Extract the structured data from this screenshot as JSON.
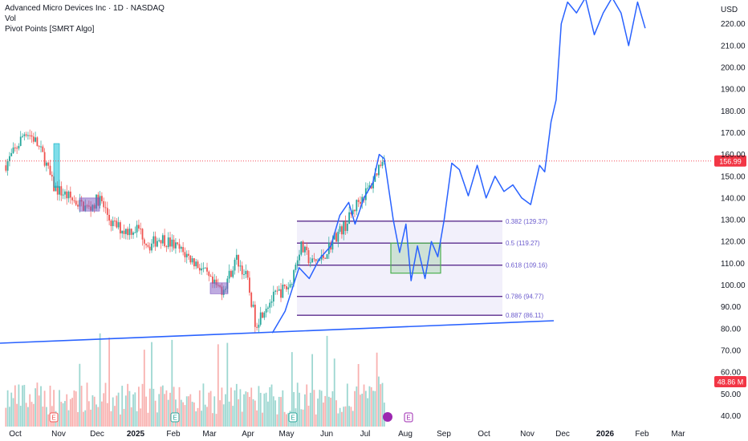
{
  "legend": {
    "title": "Advanced Micro Devices Inc · 1D · NASDAQ",
    "line2": "Vol",
    "line3": "Pivot Points [SMRT Algo]"
  },
  "chart_data": {
    "type": "line",
    "currency": "USD",
    "y_ticks": [
      40,
      50,
      60,
      70,
      80,
      90,
      100,
      110,
      120,
      130,
      140,
      150,
      160,
      170,
      180,
      190,
      200,
      210,
      220
    ],
    "ylim": [
      35,
      228
    ],
    "x_labels": [
      "Oct",
      "Nov",
      "Dec",
      "2025",
      "Feb",
      "Mar",
      "Apr",
      "May",
      "Jun",
      "Jul",
      "Aug",
      "Sep",
      "Oct",
      "Nov",
      "Dec",
      "2026",
      "Feb",
      "Mar"
    ],
    "x_label_bold": [
      "2025",
      "2026"
    ],
    "current_price": "156.99",
    "volume_label": "48.86 M",
    "fib_levels": [
      {
        "label": "0.382 (129.37)",
        "value": 129.37
      },
      {
        "label": "0.5 (119.27)",
        "value": 119.27
      },
      {
        "label": "0.618 (109.16)",
        "value": 109.16
      },
      {
        "label": "0.786 (94.77)",
        "value": 94.77
      },
      {
        "label": "0.887 (86.11)",
        "value": 86.11
      }
    ],
    "projection_series": [
      {
        "date": "2025-04-21",
        "value": 78
      },
      {
        "date": "2025-05-01",
        "value": 88
      },
      {
        "date": "2025-05-12",
        "value": 108
      },
      {
        "date": "2025-05-20",
        "value": 103
      },
      {
        "date": "2025-05-28",
        "value": 112
      },
      {
        "date": "2025-06-06",
        "value": 118
      },
      {
        "date": "2025-06-13",
        "value": 132
      },
      {
        "date": "2025-06-20",
        "value": 138
      },
      {
        "date": "2025-06-25",
        "value": 128
      },
      {
        "date": "2025-07-02",
        "value": 140
      },
      {
        "date": "2025-07-09",
        "value": 147
      },
      {
        "date": "2025-07-14",
        "value": 160
      },
      {
        "date": "2025-07-18",
        "value": 158
      },
      {
        "date": "2025-07-25",
        "value": 130
      },
      {
        "date": "2025-07-30",
        "value": 115
      },
      {
        "date": "2025-08-04",
        "value": 128
      },
      {
        "date": "2025-08-08",
        "value": 102
      },
      {
        "date": "2025-08-13",
        "value": 118
      },
      {
        "date": "2025-08-19",
        "value": 103
      },
      {
        "date": "2025-08-24",
        "value": 120
      },
      {
        "date": "2025-08-29",
        "value": 113
      },
      {
        "date": "2025-09-03",
        "value": 130
      },
      {
        "date": "2025-09-09",
        "value": 156
      },
      {
        "date": "2025-09-15",
        "value": 153
      },
      {
        "date": "2025-09-22",
        "value": 141
      },
      {
        "date": "2025-09-29",
        "value": 155
      },
      {
        "date": "2025-10-06",
        "value": 140
      },
      {
        "date": "2025-10-13",
        "value": 150
      },
      {
        "date": "2025-10-20",
        "value": 143
      },
      {
        "date": "2025-10-27",
        "value": 146
      },
      {
        "date": "2025-11-03",
        "value": 140
      },
      {
        "date": "2025-11-10",
        "value": 137
      },
      {
        "date": "2025-11-17",
        "value": 155
      },
      {
        "date": "2025-11-21",
        "value": 152
      },
      {
        "date": "2025-11-26",
        "value": 175
      },
      {
        "date": "2025-11-30",
        "value": 185
      },
      {
        "date": "2025-12-04",
        "value": 220
      },
      {
        "date": "2025-12-09",
        "value": 230
      },
      {
        "date": "2025-12-16",
        "value": 225
      },
      {
        "date": "2025-12-23",
        "value": 232
      },
      {
        "date": "2025-12-30",
        "value": 215
      },
      {
        "date": "2026-01-06",
        "value": 225
      },
      {
        "date": "2026-01-13",
        "value": 232
      },
      {
        "date": "2026-01-20",
        "value": 225
      },
      {
        "date": "2026-01-26",
        "value": 210
      },
      {
        "date": "2026-02-02",
        "value": 230
      },
      {
        "date": "2026-02-08",
        "value": 218
      }
    ],
    "price_series": [
      {
        "date": "2024-09-23",
        "value": 155
      },
      {
        "date": "2024-10-01",
        "value": 162
      },
      {
        "date": "2024-10-09",
        "value": 171
      },
      {
        "date": "2024-10-16",
        "value": 167
      },
      {
        "date": "2024-10-24",
        "value": 158
      },
      {
        "date": "2024-10-31",
        "value": 145
      },
      {
        "date": "2024-11-08",
        "value": 142
      },
      {
        "date": "2024-11-18",
        "value": 138
      },
      {
        "date": "2024-11-28",
        "value": 135
      },
      {
        "date": "2024-12-06",
        "value": 140
      },
      {
        "date": "2024-12-16",
        "value": 128
      },
      {
        "date": "2024-12-26",
        "value": 125
      },
      {
        "date": "2025-01-06",
        "value": 126
      },
      {
        "date": "2025-01-14",
        "value": 118
      },
      {
        "date": "2025-01-23",
        "value": 122
      },
      {
        "date": "2025-02-03",
        "value": 118
      },
      {
        "date": "2025-02-12",
        "value": 114
      },
      {
        "date": "2025-02-24",
        "value": 108
      },
      {
        "date": "2025-03-05",
        "value": 100
      },
      {
        "date": "2025-03-13",
        "value": 98
      },
      {
        "date": "2025-03-24",
        "value": 112
      },
      {
        "date": "2025-04-01",
        "value": 103
      },
      {
        "date": "2025-04-08",
        "value": 82
      },
      {
        "date": "2025-04-15",
        "value": 90
      },
      {
        "date": "2025-04-25",
        "value": 96
      },
      {
        "date": "2025-05-05",
        "value": 100
      },
      {
        "date": "2025-05-13",
        "value": 118
      },
      {
        "date": "2025-05-22",
        "value": 110
      },
      {
        "date": "2025-05-30",
        "value": 112
      },
      {
        "date": "2025-06-09",
        "value": 122
      },
      {
        "date": "2025-06-18",
        "value": 128
      },
      {
        "date": "2025-06-27",
        "value": 138
      },
      {
        "date": "2025-07-07",
        "value": 145
      },
      {
        "date": "2025-07-14",
        "value": 155
      },
      {
        "date": "2025-07-18",
        "value": 160
      }
    ]
  }
}
